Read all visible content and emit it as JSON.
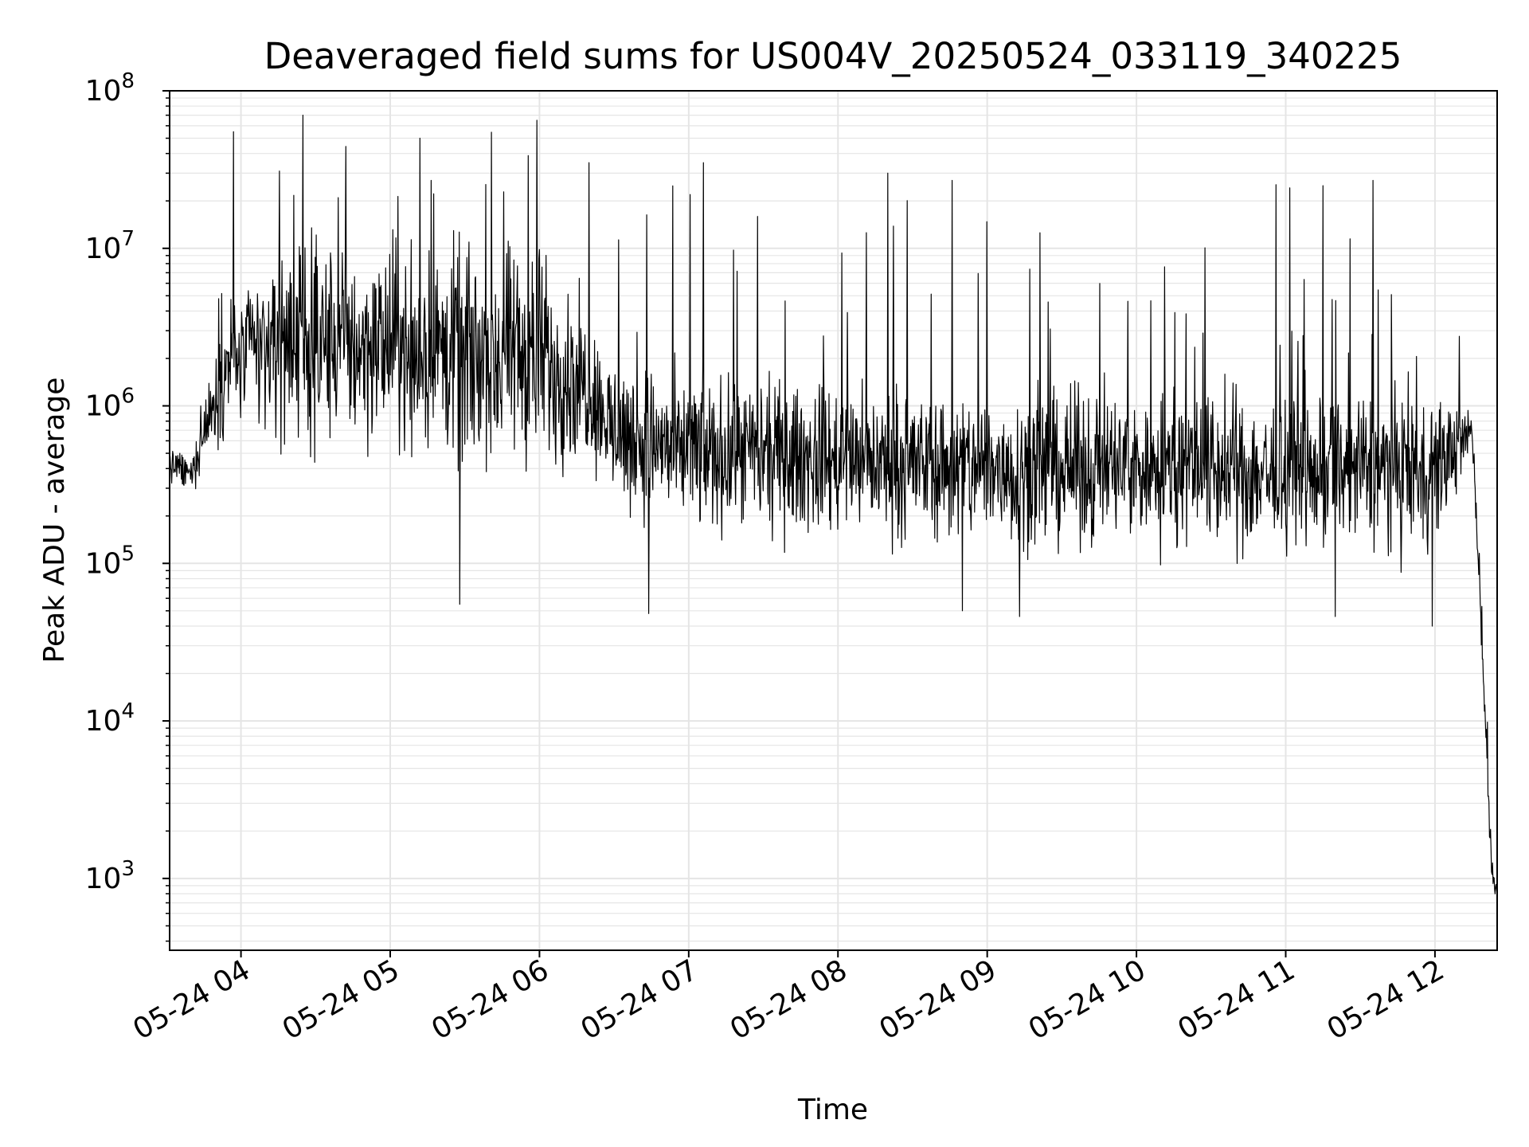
{
  "chart_data": {
    "type": "line",
    "title": "Deaveraged field sums for US004V_20250524_033119_340225",
    "xlabel": "Time",
    "ylabel": "Peak ADU - average",
    "y_scale": "log",
    "ylim": [
      350,
      100000000
    ],
    "xlim": [
      "2025-05-24T03:31:19",
      "2025-05-24T12:25:00"
    ],
    "grid": true,
    "grid_minor": true,
    "line_color": "#000000",
    "grid_color": "#e5e5e5",
    "x_ticks": [
      {
        "t": "2025-05-24T04:00",
        "label": "05-24 04"
      },
      {
        "t": "2025-05-24T05:00",
        "label": "05-24 05"
      },
      {
        "t": "2025-05-24T06:00",
        "label": "05-24 06"
      },
      {
        "t": "2025-05-24T07:00",
        "label": "05-24 07"
      },
      {
        "t": "2025-05-24T08:00",
        "label": "05-24 08"
      },
      {
        "t": "2025-05-24T09:00",
        "label": "05-24 09"
      },
      {
        "t": "2025-05-24T10:00",
        "label": "05-24 10"
      },
      {
        "t": "2025-05-24T11:00",
        "label": "05-24 11"
      },
      {
        "t": "2025-05-24T12:00",
        "label": "05-24 12"
      }
    ],
    "y_ticks": [
      {
        "value": 1000,
        "base": "10",
        "exp": "3"
      },
      {
        "value": 10000,
        "base": "10",
        "exp": "4"
      },
      {
        "value": 100000,
        "base": "10",
        "exp": "5"
      },
      {
        "value": 1000000,
        "base": "10",
        "exp": "6"
      },
      {
        "value": 10000000,
        "base": "10",
        "exp": "7"
      },
      {
        "value": 100000000,
        "base": "10",
        "exp": "8"
      }
    ],
    "series": [
      {
        "style": "dense noisy trace; envelope (time, typical low, typical high, extreme spike)",
        "envelope": [
          {
            "t": "2025-05-24T03:31",
            "low": 300000,
            "high": 650000,
            "spike": 650000
          },
          {
            "t": "2025-05-24T03:40",
            "low": 250000,
            "high": 500000,
            "spike": 600000
          },
          {
            "t": "2025-05-24T03:45",
            "low": 350000,
            "high": 1200000,
            "spike": 1500000
          },
          {
            "t": "2025-05-24T03:55",
            "low": 500000,
            "high": 8000000,
            "spike": 55000000
          },
          {
            "t": "2025-05-24T04:15",
            "low": 400000,
            "high": 15000000,
            "spike": 40000000
          },
          {
            "t": "2025-05-24T04:25",
            "low": 300000,
            "high": 20000000,
            "spike": 70000000
          },
          {
            "t": "2025-05-24T05:00",
            "low": 300000,
            "high": 20000000,
            "spike": 50000000
          },
          {
            "t": "2025-05-24T05:30",
            "low": 200000,
            "high": 20000000,
            "spike": 55000000
          },
          {
            "t": "2025-05-24T06:00",
            "low": 200000,
            "high": 20000000,
            "spike": 65000000
          },
          {
            "t": "2025-05-24T06:20",
            "low": 300000,
            "high": 6000000,
            "spike": 35000000
          },
          {
            "t": "2025-05-24T06:30",
            "low": 150000,
            "high": 3000000,
            "spike": 15000000
          },
          {
            "t": "2025-05-24T07:00",
            "low": 100000,
            "high": 2500000,
            "spike": 35000000
          },
          {
            "t": "2025-05-24T08:00",
            "low": 100000,
            "high": 2000000,
            "spike": 30000000
          },
          {
            "t": "2025-05-24T09:00",
            "low": 80000,
            "high": 2000000,
            "spike": 27000000
          },
          {
            "t": "2025-05-24T10:00",
            "low": 80000,
            "high": 2000000,
            "spike": 15000000
          },
          {
            "t": "2025-05-24T11:00",
            "low": 70000,
            "high": 2000000,
            "spike": 27000000
          },
          {
            "t": "2025-05-24T12:00",
            "low": 80000,
            "high": 2000000,
            "spike": 6000000
          },
          {
            "t": "2025-05-24T12:15",
            "low": 500000,
            "high": 1000000,
            "spike": 2500000
          },
          {
            "t": "2025-05-24T12:18",
            "low": 40000,
            "high": 100000,
            "spike": 100000
          },
          {
            "t": "2025-05-24T12:22",
            "low": 1000,
            "high": 5000,
            "spike": 5000
          },
          {
            "t": "2025-05-24T12:24",
            "low": 700,
            "high": 1000,
            "spike": 1000
          }
        ],
        "spikes": [
          {
            "t": "2025-05-24T03:57",
            "value": 55000000
          },
          {
            "t": "2025-05-24T04:25",
            "value": 70000000
          },
          {
            "t": "2025-05-24T05:12",
            "value": 50000000
          },
          {
            "t": "2025-05-24T05:59",
            "value": 65000000
          },
          {
            "t": "2025-05-24T06:20",
            "value": 35000000
          },
          {
            "t": "2025-05-24T07:06",
            "value": 35000000
          },
          {
            "t": "2025-05-24T08:20",
            "value": 30000000
          },
          {
            "t": "2025-05-24T08:46",
            "value": 27000000
          },
          {
            "t": "2025-05-24T11:15",
            "value": 25000000
          },
          {
            "t": "2025-05-24T11:35",
            "value": 27000000
          }
        ],
        "dips": [
          {
            "t": "2025-05-24T05:28",
            "value": 55000
          },
          {
            "t": "2025-05-24T06:44",
            "value": 48000
          },
          {
            "t": "2025-05-24T08:50",
            "value": 50000
          },
          {
            "t": "2025-05-24T09:13",
            "value": 46000
          },
          {
            "t": "2025-05-24T11:20",
            "value": 46000
          },
          {
            "t": "2025-05-24T11:59",
            "value": 40000
          }
        ]
      }
    ]
  }
}
